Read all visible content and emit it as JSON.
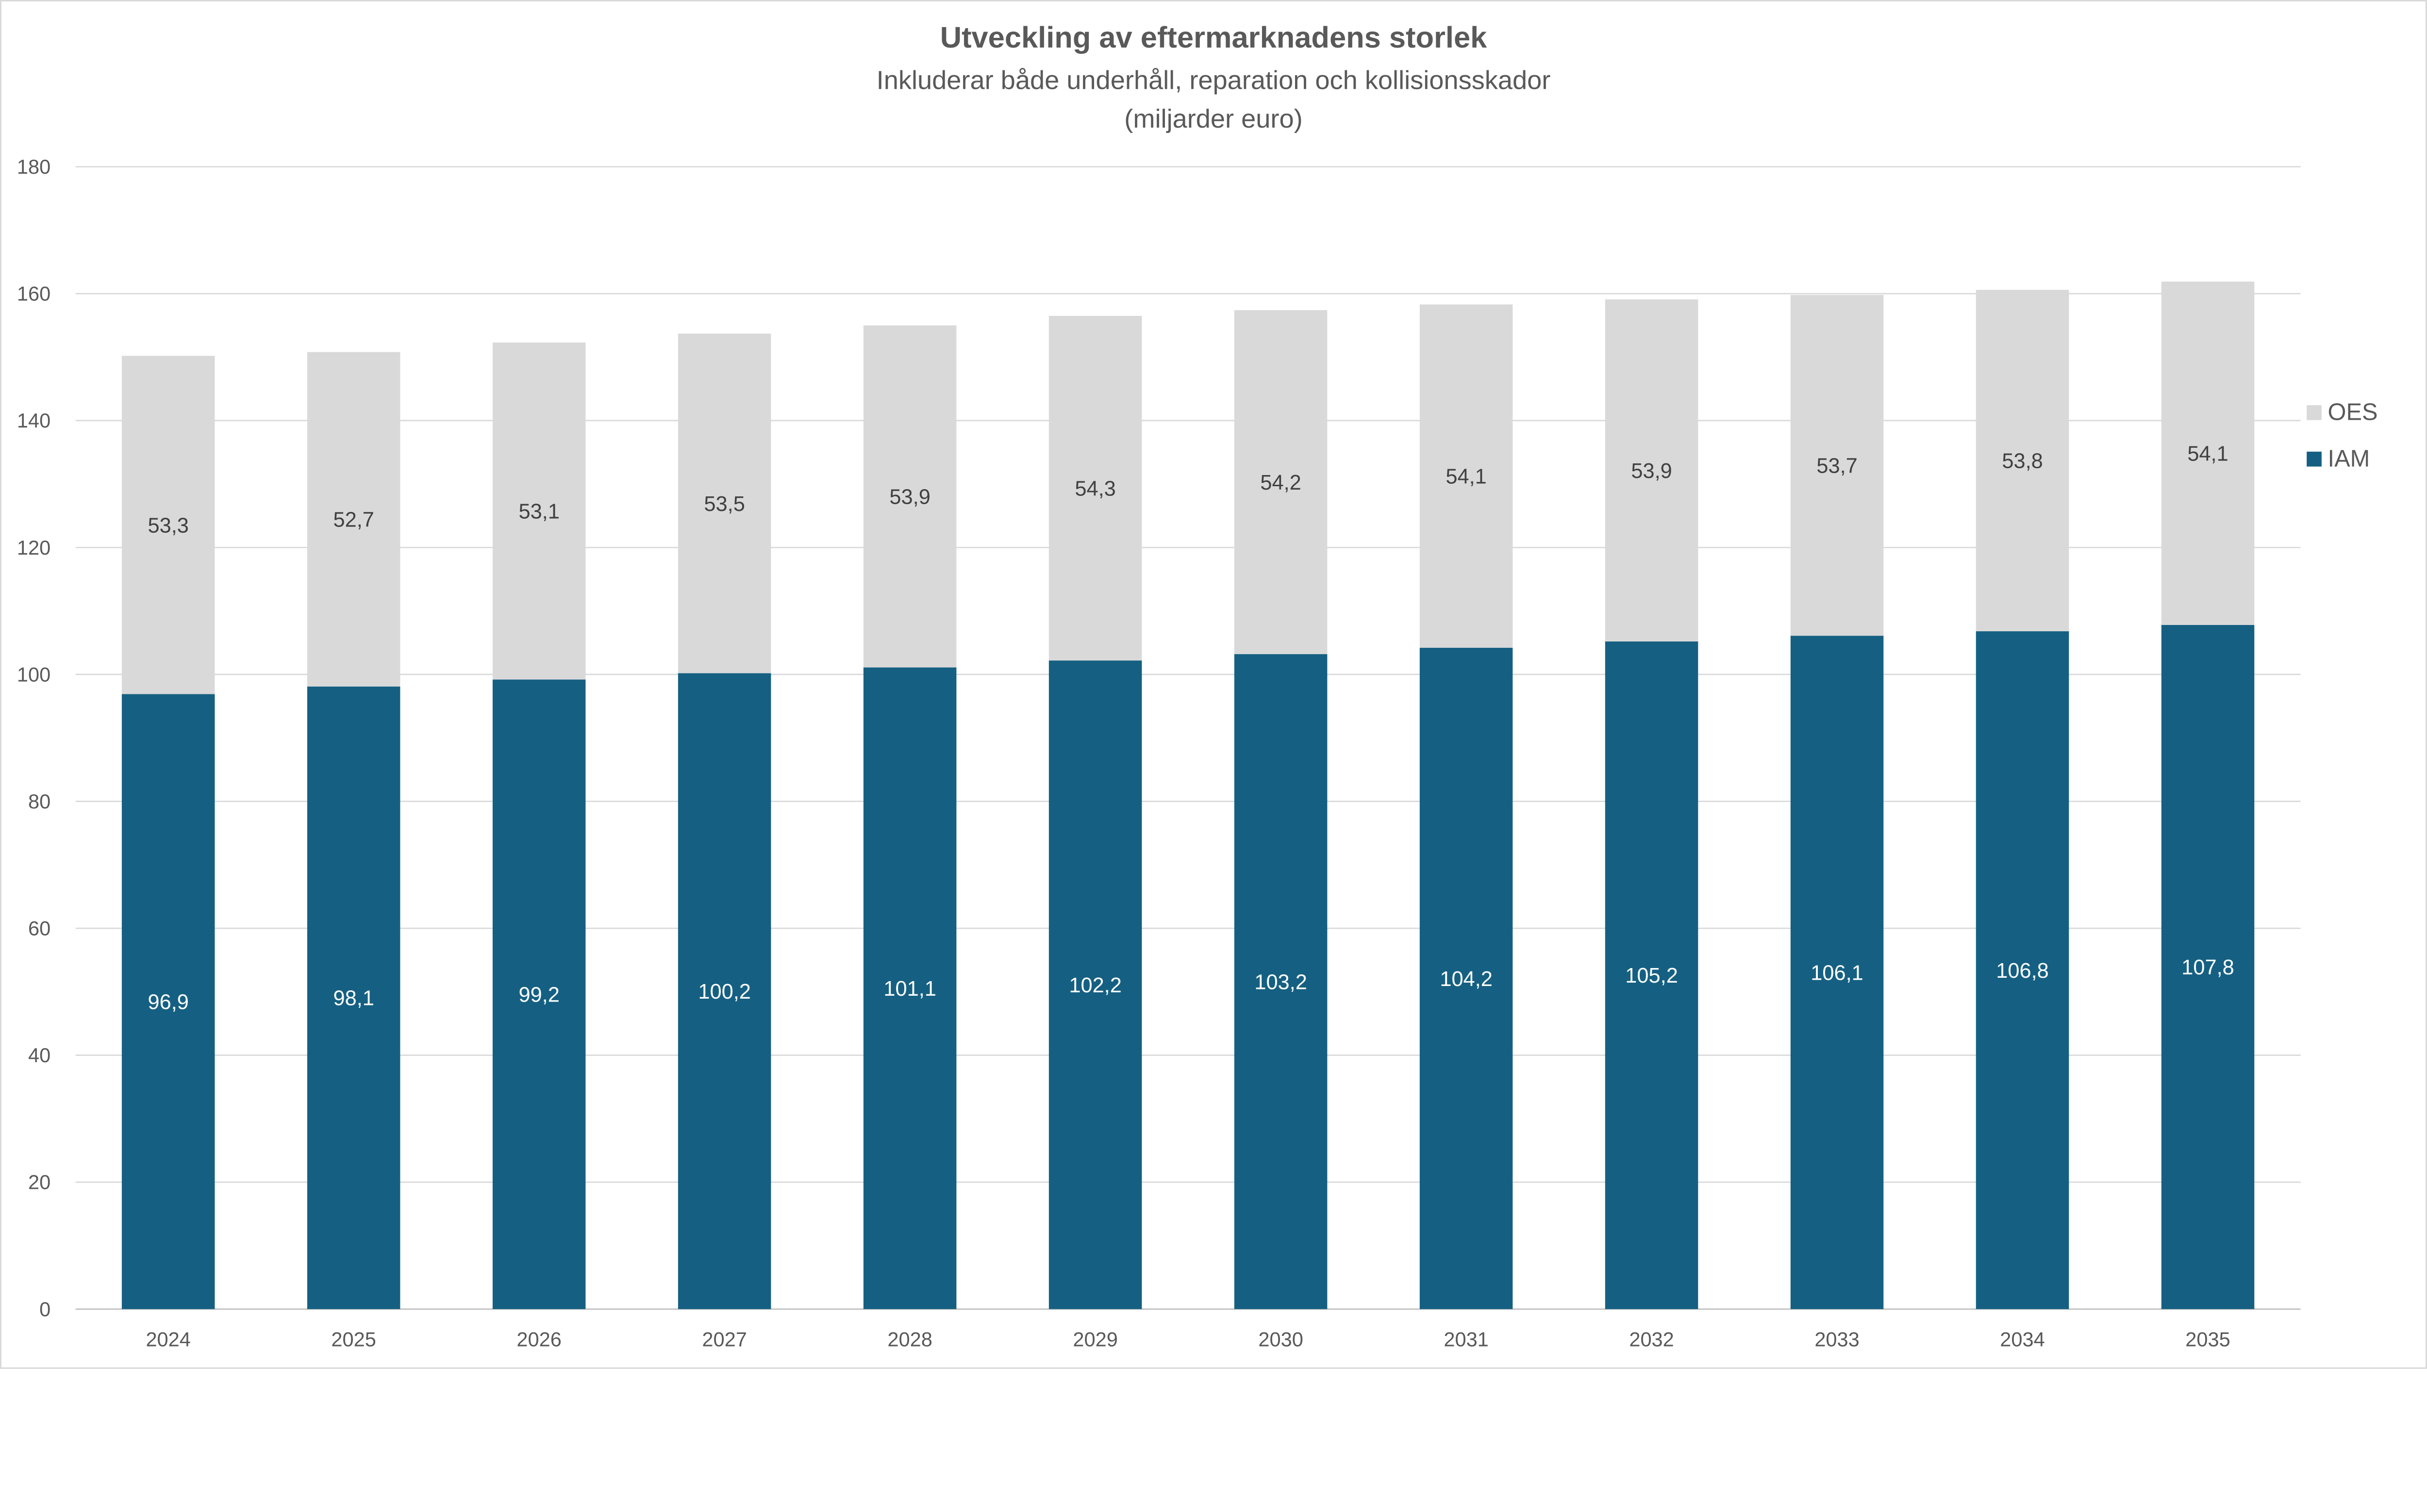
{
  "chart_data": {
    "type": "stacked-bar",
    "title": "Utveckling av eftermarknadens storlek",
    "subtitle": "Inkluderar både underhåll, reparation och kollisionsskador",
    "subtitle2": "(miljarder euro)",
    "xlabel": "",
    "ylabel": "",
    "ylim": [
      0,
      180
    ],
    "yticks": [
      0,
      20,
      40,
      60,
      80,
      100,
      120,
      140,
      160,
      180
    ],
    "grid": true,
    "legend_position": "right",
    "categories": [
      "2024",
      "2025",
      "2026",
      "2027",
      "2028",
      "2029",
      "2030",
      "2031",
      "2032",
      "2033",
      "2034",
      "2035"
    ],
    "series": [
      {
        "name": "IAM",
        "color": "#156082",
        "label_color": "#ffffff",
        "values": [
          96.9,
          98.1,
          99.2,
          100.2,
          101.1,
          102.2,
          103.2,
          104.2,
          105.2,
          106.1,
          106.8,
          107.8
        ],
        "labels": [
          "96,9",
          "98,1",
          "99,2",
          "100,2",
          "101,1",
          "102,2",
          "103,2",
          "104,2",
          "105,2",
          "106,1",
          "106,8",
          "107,8"
        ]
      },
      {
        "name": "OES",
        "color": "#d9d9d9",
        "label_color": "#404040",
        "values": [
          53.3,
          52.7,
          53.1,
          53.5,
          53.9,
          54.3,
          54.2,
          54.1,
          53.9,
          53.7,
          53.8,
          54.1
        ],
        "labels": [
          "53,3",
          "52,7",
          "53,1",
          "53,5",
          "53,9",
          "54,3",
          "54,2",
          "54,1",
          "53,9",
          "53,7",
          "53,8",
          "54,1"
        ]
      }
    ],
    "legend_order": [
      "OES",
      "IAM"
    ]
  }
}
